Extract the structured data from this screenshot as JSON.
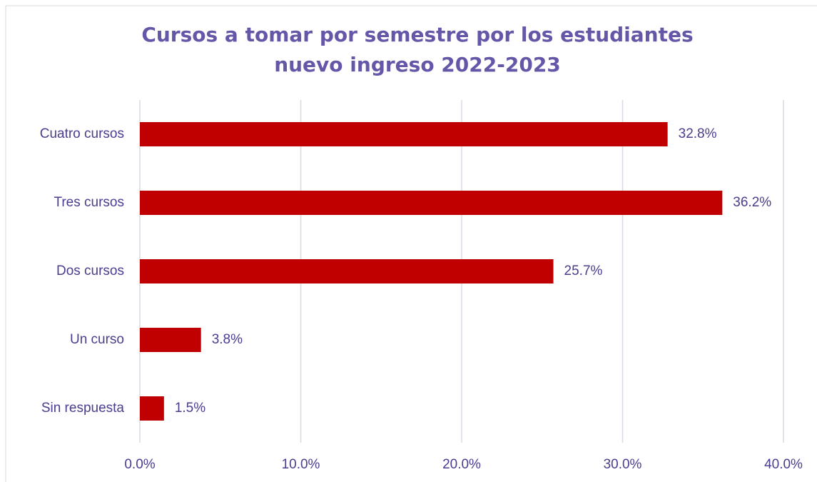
{
  "chart_data": {
    "type": "hbar",
    "title": "Cursos a tomar por semestre por los estudiantes nuevo ingreso 2022-2023",
    "categories": [
      "Cuatro cursos",
      "Tres cursos",
      "Dos cursos",
      "Un curso",
      "Sin respuesta"
    ],
    "values": [
      32.8,
      36.2,
      25.7,
      3.8,
      1.5
    ],
    "value_labels": [
      "32.8%",
      "36.2%",
      "25.7%",
      "3.8%",
      "1.5%"
    ],
    "color": "#c00000",
    "xlim": [
      0,
      40
    ],
    "xticks": [
      {
        "value": 0,
        "label": "0.0%"
      },
      {
        "value": 10,
        "label": "10.0%"
      },
      {
        "value": 20,
        "label": "20.0%"
      },
      {
        "value": 30,
        "label": "30.0%"
      },
      {
        "value": 40,
        "label": "40.0%"
      }
    ],
    "grid": true
  }
}
